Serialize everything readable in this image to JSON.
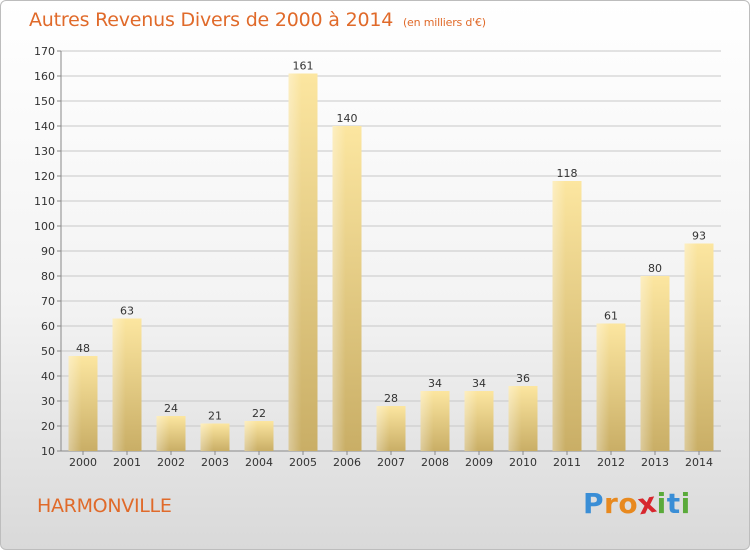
{
  "title": "Autres Revenus Divers de 2000 à 2014",
  "subtitle": "(en milliers d'€)",
  "location": "HARMONVILLE",
  "logo": {
    "text": "Proxiti",
    "letters": [
      "P",
      "r",
      "o",
      "x",
      "i",
      "t",
      "i"
    ],
    "colors": [
      "#3a8ed6",
      "#e8891e",
      "#e8891e",
      "#d7262d",
      "#5aaa3a",
      "#3a8ed6",
      "#5aaa3a"
    ]
  },
  "colors": {
    "title": "#e06a2a",
    "bar_light": "#fce6a0",
    "bar_dark": "#c9ae66",
    "grid": "#c8c8c8"
  },
  "chart_data": {
    "type": "bar",
    "title": "Autres Revenus Divers de 2000 à 2014",
    "subtitle": "(en milliers d'€)",
    "xlabel": "",
    "ylabel": "",
    "categories": [
      "2000",
      "2001",
      "2002",
      "2003",
      "2004",
      "2005",
      "2006",
      "2007",
      "2008",
      "2009",
      "2010",
      "2011",
      "2012",
      "2013",
      "2014"
    ],
    "values": [
      48,
      63,
      24,
      21,
      22,
      161,
      140,
      28,
      34,
      34,
      36,
      118,
      61,
      80,
      93
    ],
    "ylim": [
      10,
      170
    ],
    "yticks": [
      10,
      20,
      30,
      40,
      50,
      60,
      70,
      80,
      90,
      100,
      110,
      120,
      130,
      140,
      150,
      160,
      170
    ],
    "grid": true,
    "data_labels": true
  }
}
